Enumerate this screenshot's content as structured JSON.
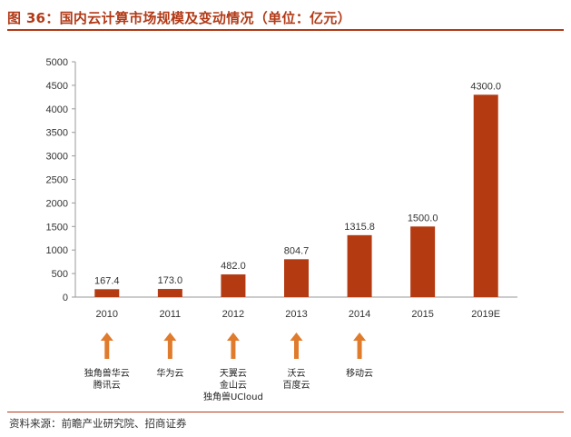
{
  "header": {
    "title": "图 36：国内云计算市场规模及变动情况（单位：亿元）"
  },
  "source": "资料来源：前瞻产业研究院、招商证券",
  "colors": {
    "accent": "#b23a17",
    "bar": "#b43a12",
    "arrow": "#e07b2c",
    "axis": "#999999",
    "text": "#333333"
  },
  "chart_data": {
    "type": "bar",
    "title": "",
    "xlabel": "",
    "ylabel": "",
    "categories": [
      "2010",
      "2011",
      "2012",
      "2013",
      "2014",
      "2015",
      "2019E"
    ],
    "values": [
      167.4,
      173.0,
      482.0,
      804.7,
      1315.8,
      1500.0,
      4300.0
    ],
    "value_labels": [
      "167.4",
      "173.0",
      "482.0",
      "804.7",
      "1315.8",
      "1500.0",
      "4300.0"
    ],
    "ylim": [
      0,
      5000
    ],
    "yticks": [
      0,
      500,
      1000,
      1500,
      2000,
      2500,
      3000,
      3500,
      4000,
      4500,
      5000
    ],
    "ytick_labels": [
      "0",
      "500",
      "1000",
      "1500",
      "2000",
      "2500",
      "3000",
      "3500",
      "4000",
      "4500",
      "5000"
    ],
    "grid": false,
    "legend": "none",
    "annotations": [
      {
        "category": "2010",
        "lines": [
          "独角兽华云",
          "腾讯云"
        ]
      },
      {
        "category": "2011",
        "lines": [
          "华为云"
        ]
      },
      {
        "category": "2012",
        "lines": [
          "天翼云",
          "金山云",
          "独角兽UCloud"
        ]
      },
      {
        "category": "2013",
        "lines": [
          "沃云",
          "百度云"
        ]
      },
      {
        "category": "2014",
        "lines": [
          "移动云"
        ]
      }
    ]
  }
}
